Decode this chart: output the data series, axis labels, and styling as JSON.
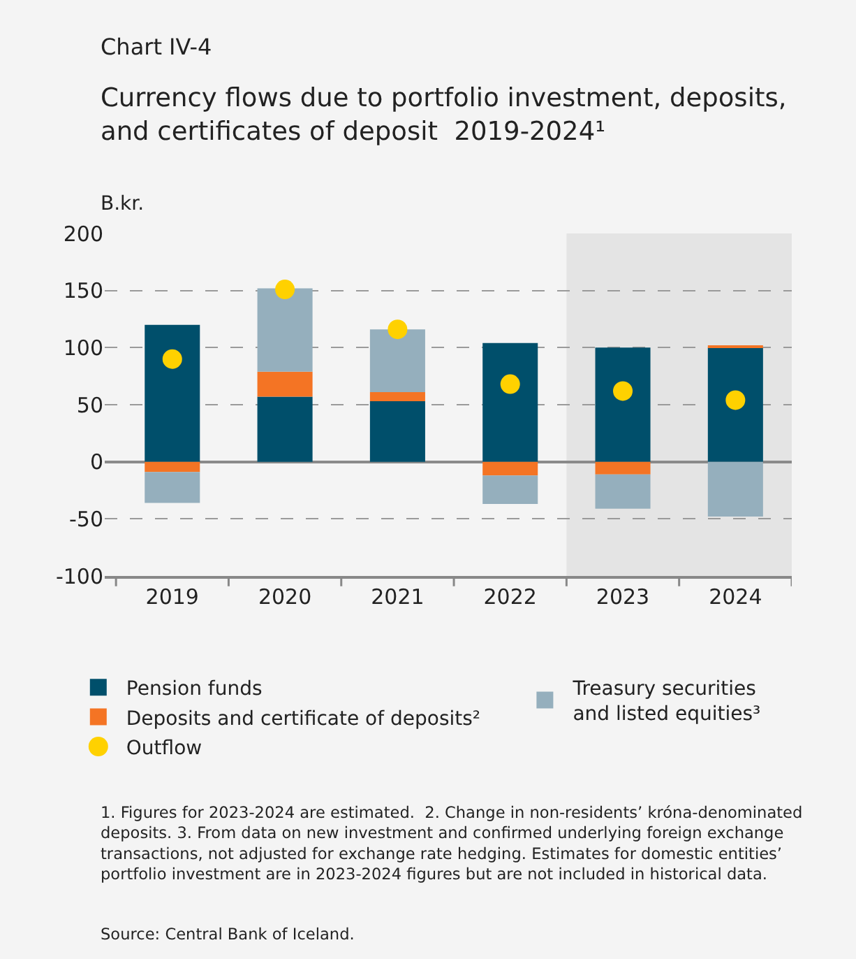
{
  "chart_data": {
    "type": "bar",
    "subtitle": "Chart IV-4",
    "title": "Currency flows due to portfolio investment, deposits, and certificates of deposit  2019-2024¹",
    "ylabel": "B.kr.",
    "categories": [
      "2019",
      "2020",
      "2021",
      "2022",
      "2023",
      "2024"
    ],
    "stacked": true,
    "series": [
      {
        "name": "Pension funds",
        "color": "#004f6b",
        "values": [
          120,
          57,
          53,
          104,
          100,
          100
        ]
      },
      {
        "name": "Deposits and certificate of deposits²",
        "color": "#f47424",
        "values": [
          -9,
          22,
          8,
          -12,
          -11,
          1
        ]
      },
      {
        "name": "Treasury securities and listed equities³",
        "color": "#95afbd",
        "values": [
          -27,
          73,
          55,
          -25,
          -30,
          -48
        ]
      },
      {
        "name": "Outflow",
        "type": "scatter",
        "color": "#ffd100",
        "marker": "circle",
        "values": [
          90,
          151,
          116,
          68,
          62,
          54
        ]
      }
    ],
    "ylim": [
      -100,
      200
    ],
    "yticks": [
      -100,
      -50,
      0,
      50,
      100,
      150,
      200
    ],
    "grid": "y",
    "legend": "bottom",
    "bands": [
      {
        "axis": "x",
        "from": "2023",
        "to": "2024",
        "color": "#e4e4e4"
      }
    ],
    "annotations": [
      "1. Figures for 2023-2024 are estimated.  2. Change in non-residents’ króna-denominated deposits. 3. From data on new investment and confirmed underlying foreign exchange transactions, not adjusted for exchange rate hedging. Estimates for domestic entities’ portfolio investment are in 2023-2024 figures but are not included in historical data.",
      "Source: Central Bank of Iceland."
    ]
  }
}
